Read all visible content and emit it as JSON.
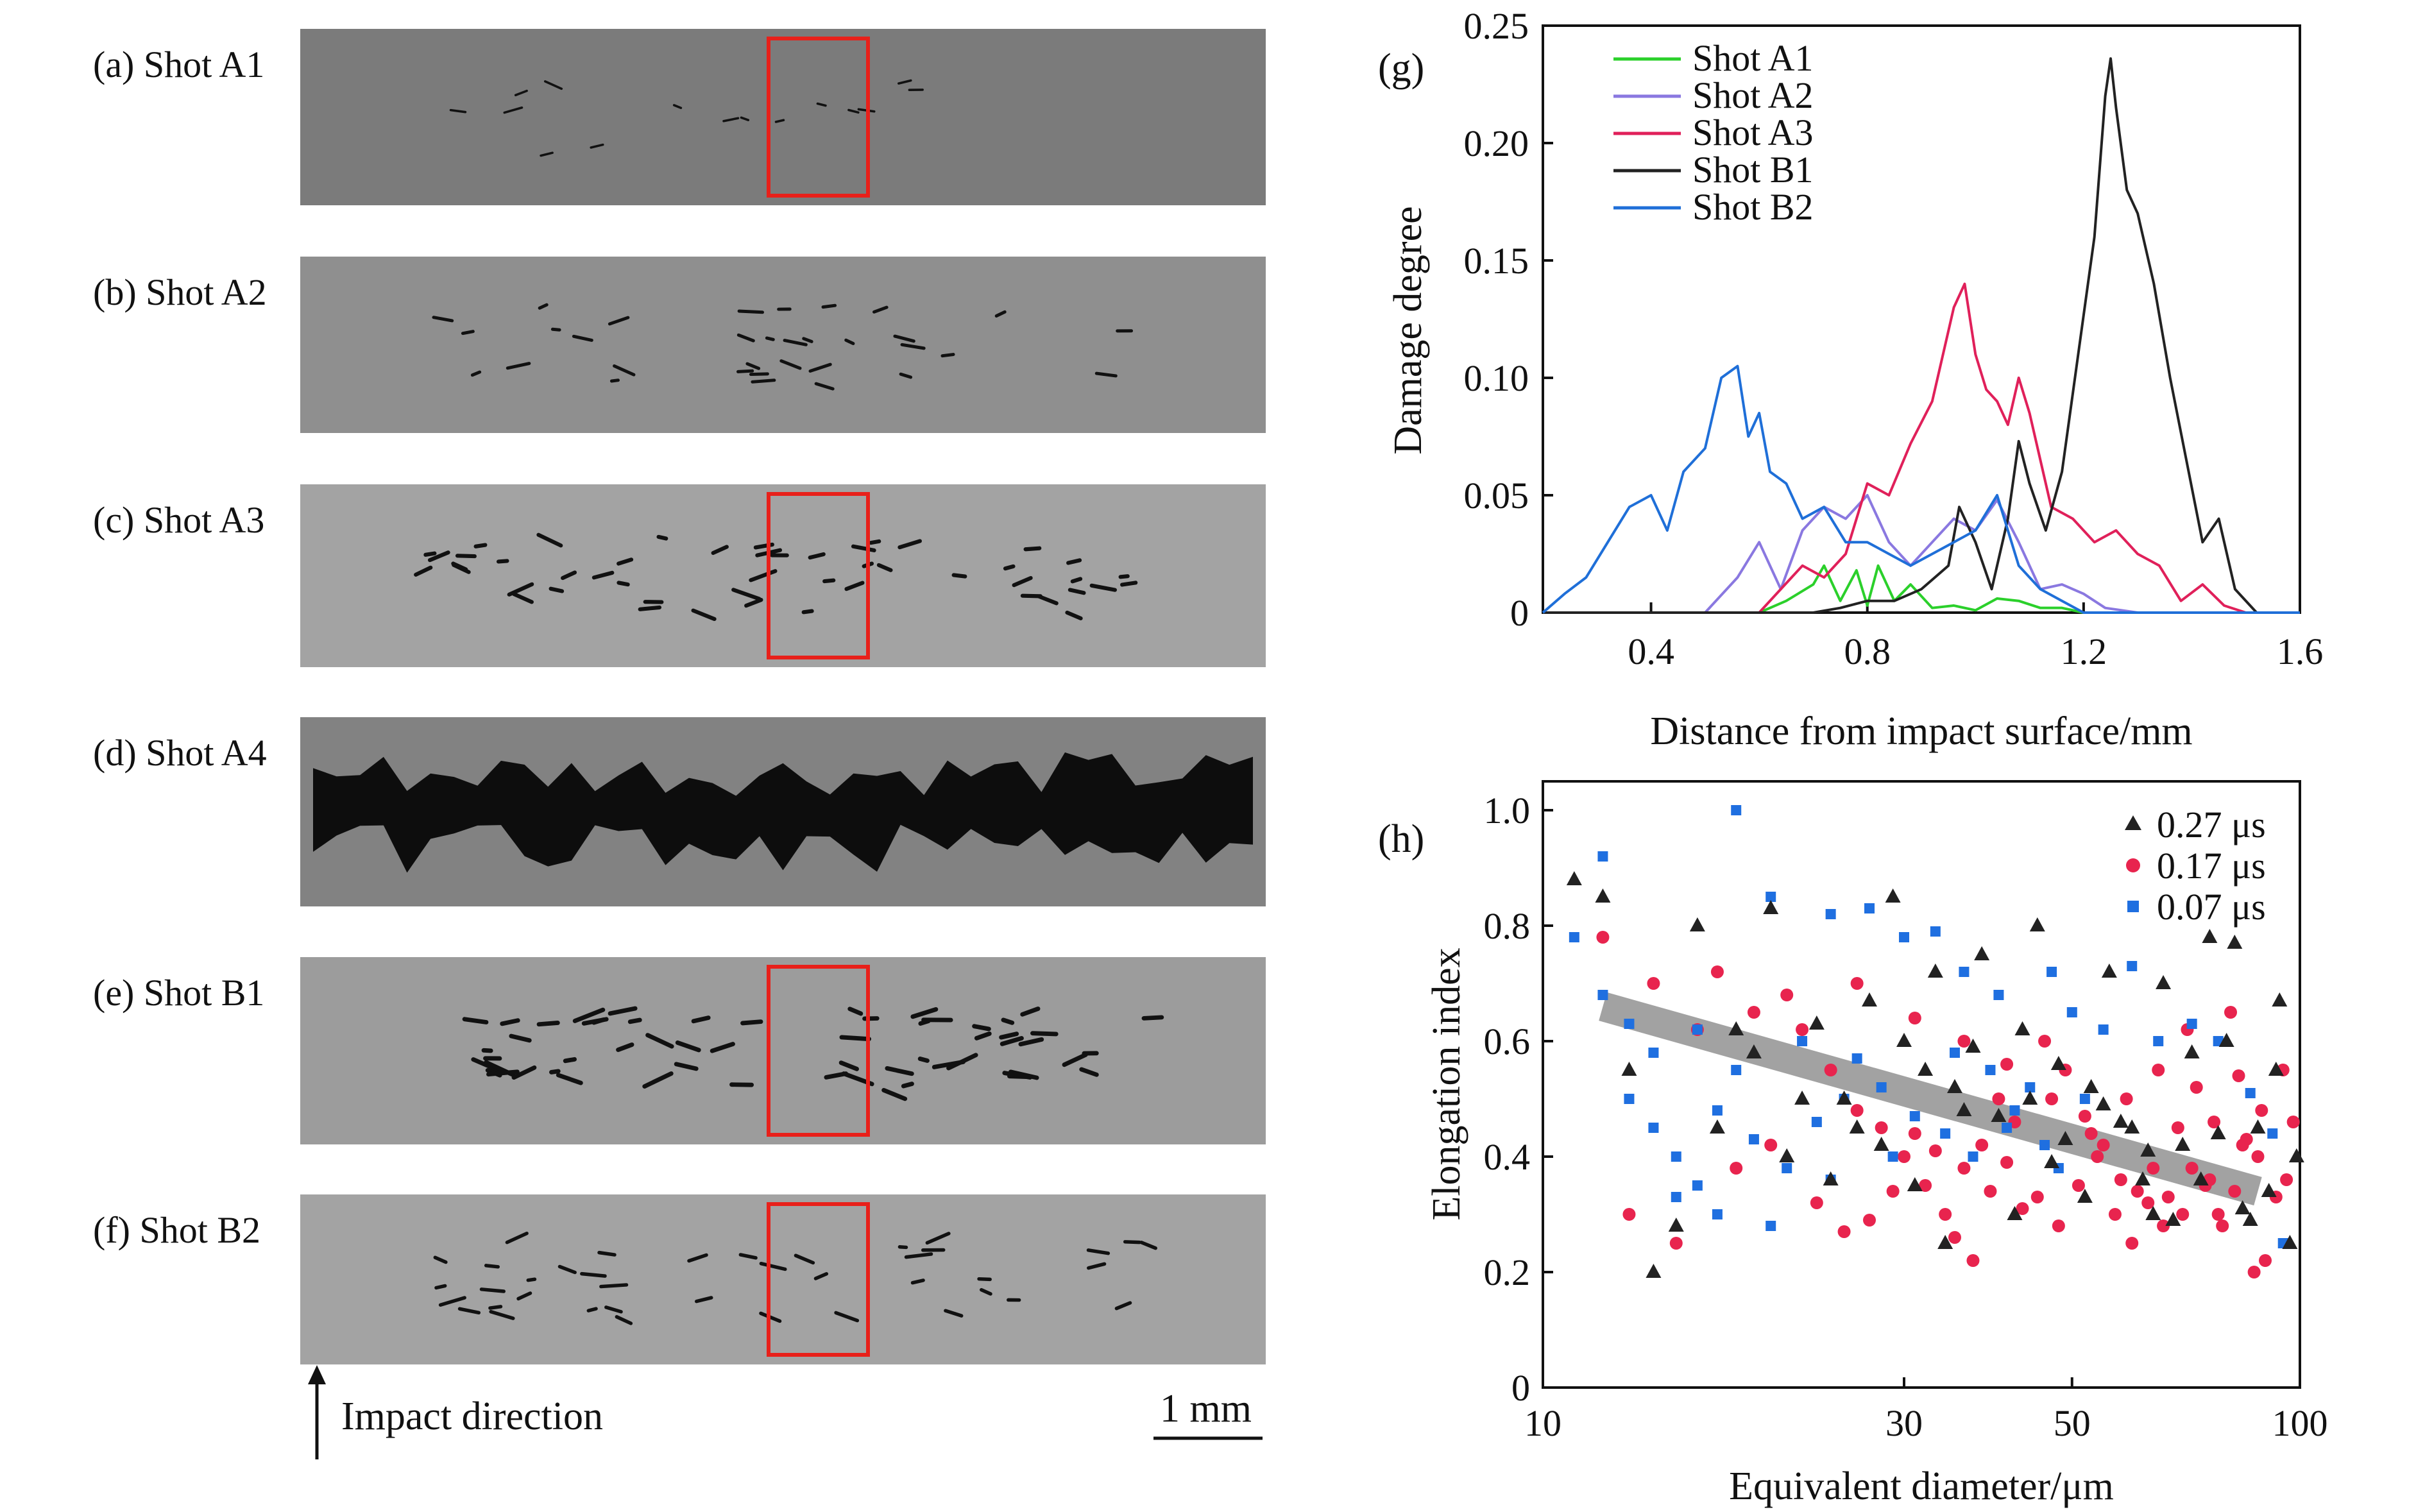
{
  "panels": [
    {
      "label": "(a) Shot A1",
      "crack_level": 0.08,
      "box": true,
      "tone": "#7b7b7b"
    },
    {
      "label": "(b) Shot A2",
      "crack_level": 0.28,
      "box": false,
      "tone": "#8f8f8f"
    },
    {
      "label": "(c) Shot A3",
      "crack_level": 0.45,
      "box": true,
      "tone": "#a3a3a3"
    },
    {
      "label": "(d) Shot A4",
      "crack_level": 1.0,
      "box": false,
      "tone": "#828282"
    },
    {
      "label": "(e) Shot B1",
      "crack_level": 0.55,
      "box": true,
      "tone": "#9c9c9c"
    },
    {
      "label": "(f) Shot B2",
      "crack_level": 0.35,
      "box": true,
      "tone": "#a3a3a3"
    }
  ],
  "impact_label": "Impact direction",
  "scale_label": "1 mm",
  "colors": {
    "A1": "#2bd02b",
    "A2": "#8a78e0",
    "A3": "#e0205a",
    "B1": "#222222",
    "B2": "#1f6fd8",
    "box": "#e8201a",
    "fit_band": "#999999",
    "tri": "#222222",
    "circ": "#e8244e",
    "sq": "#1f6fe0"
  },
  "chart_data": [
    {
      "type": "line",
      "panel_label": "(g)",
      "xlabel": "Distance from impact surface/mm",
      "ylabel": "Damage degree",
      "xlim": [
        0.2,
        1.6
      ],
      "ylim": [
        0,
        0.25
      ],
      "xticks": [
        "0.4",
        "0.8",
        "1.2",
        "1.6"
      ],
      "yticks": [
        "0",
        "0.05",
        "0.10",
        "0.15",
        "0.20",
        "0.25"
      ],
      "legend_position": "top-left",
      "series": [
        {
          "name": "Shot A1",
          "x": [
            0.2,
            0.6,
            0.65,
            0.7,
            0.72,
            0.75,
            0.78,
            0.8,
            0.82,
            0.85,
            0.88,
            0.92,
            0.96,
            1.0,
            1.04,
            1.08,
            1.12,
            1.16,
            1.2,
            1.6
          ],
          "y": [
            0,
            0,
            0.005,
            0.012,
            0.02,
            0.005,
            0.018,
            0.003,
            0.02,
            0.005,
            0.012,
            0.002,
            0.003,
            0.001,
            0.006,
            0.005,
            0.002,
            0.002,
            0,
            0
          ]
        },
        {
          "name": "Shot A2",
          "x": [
            0.2,
            0.5,
            0.56,
            0.6,
            0.64,
            0.68,
            0.72,
            0.76,
            0.8,
            0.84,
            0.88,
            0.92,
            0.96,
            1.0,
            1.04,
            1.08,
            1.12,
            1.16,
            1.2,
            1.24,
            1.3,
            1.6
          ],
          "y": [
            0,
            0,
            0.015,
            0.03,
            0.01,
            0.035,
            0.045,
            0.04,
            0.05,
            0.03,
            0.02,
            0.03,
            0.04,
            0.035,
            0.048,
            0.03,
            0.01,
            0.012,
            0.008,
            0.002,
            0,
            0
          ]
        },
        {
          "name": "Shot A3",
          "x": [
            0.2,
            0.6,
            0.64,
            0.68,
            0.72,
            0.76,
            0.8,
            0.84,
            0.88,
            0.92,
            0.96,
            0.98,
            1.0,
            1.02,
            1.04,
            1.06,
            1.08,
            1.1,
            1.14,
            1.18,
            1.22,
            1.26,
            1.3,
            1.34,
            1.38,
            1.42,
            1.46,
            1.5,
            1.6
          ],
          "y": [
            0,
            0,
            0.01,
            0.02,
            0.015,
            0.025,
            0.055,
            0.05,
            0.072,
            0.09,
            0.13,
            0.14,
            0.11,
            0.095,
            0.09,
            0.08,
            0.1,
            0.085,
            0.045,
            0.04,
            0.03,
            0.035,
            0.025,
            0.02,
            0.005,
            0.012,
            0.003,
            0,
            0
          ]
        },
        {
          "name": "Shot B1",
          "x": [
            0.2,
            0.7,
            0.75,
            0.8,
            0.85,
            0.9,
            0.95,
            0.97,
            1.0,
            1.03,
            1.06,
            1.08,
            1.1,
            1.13,
            1.16,
            1.19,
            1.22,
            1.24,
            1.25,
            1.26,
            1.28,
            1.3,
            1.33,
            1.36,
            1.39,
            1.42,
            1.45,
            1.48,
            1.52,
            1.6
          ],
          "y": [
            0,
            0,
            0.002,
            0.005,
            0.005,
            0.01,
            0.02,
            0.045,
            0.03,
            0.01,
            0.04,
            0.073,
            0.055,
            0.035,
            0.06,
            0.11,
            0.16,
            0.22,
            0.236,
            0.215,
            0.18,
            0.17,
            0.14,
            0.1,
            0.065,
            0.03,
            0.04,
            0.01,
            0,
            0
          ]
        },
        {
          "name": "Shot B2",
          "x": [
            0.2,
            0.24,
            0.28,
            0.32,
            0.36,
            0.4,
            0.43,
            0.46,
            0.5,
            0.53,
            0.56,
            0.58,
            0.6,
            0.62,
            0.65,
            0.68,
            0.72,
            0.76,
            0.8,
            0.84,
            0.88,
            0.92,
            0.96,
            1.0,
            1.04,
            1.08,
            1.12,
            1.16,
            1.2,
            1.6
          ],
          "y": [
            0,
            0.008,
            0.015,
            0.03,
            0.045,
            0.05,
            0.035,
            0.06,
            0.07,
            0.1,
            0.105,
            0.075,
            0.085,
            0.06,
            0.055,
            0.04,
            0.045,
            0.03,
            0.03,
            0.025,
            0.02,
            0.025,
            0.03,
            0.035,
            0.05,
            0.02,
            0.01,
            0.005,
            0,
            0
          ]
        }
      ]
    },
    {
      "type": "scatter",
      "panel_label": "(h)",
      "xlabel": "Equivalent diameter/μm",
      "ylabel": "Elongation index",
      "xlim": [
        10,
        100
      ],
      "ylim": [
        0,
        1.05
      ],
      "xticks": [
        "10",
        "30",
        "50",
        "100"
      ],
      "yticks": [
        "0",
        "0.2",
        "0.4",
        "0.6",
        "0.8",
        "1.0"
      ],
      "legend_position": "top-right",
      "trend": {
        "x": [
          12,
          88
        ],
        "y": [
          0.66,
          0.34
        ]
      },
      "series": [
        {
          "name": "0.27 μs",
          "marker": "triangle"
        },
        {
          "name": "0.17 μs",
          "marker": "circle"
        },
        {
          "name": "0.07 μs",
          "marker": "square"
        }
      ],
      "points": {
        "tri": [
          [
            11,
            0.88
          ],
          [
            12,
            0.85
          ],
          [
            16,
            0.8
          ],
          [
            20,
            0.83
          ],
          [
            29,
            0.85
          ],
          [
            33,
            0.72
          ],
          [
            38,
            0.75
          ],
          [
            45,
            0.8
          ],
          [
            56,
            0.72
          ],
          [
            66,
            0.7
          ],
          [
            76,
            0.78
          ],
          [
            82,
            0.77
          ],
          [
            94,
            0.67
          ],
          [
            99,
            0.4
          ],
          [
            13,
            0.55
          ],
          [
            18,
            0.62
          ],
          [
            22,
            0.5
          ],
          [
            26,
            0.45
          ],
          [
            31,
            0.35
          ],
          [
            35,
            0.52
          ],
          [
            40,
            0.47
          ],
          [
            47,
            0.39
          ],
          [
            52,
            0.33
          ],
          [
            60,
            0.45
          ],
          [
            64,
            0.3
          ],
          [
            70,
            0.42
          ],
          [
            74,
            0.36
          ],
          [
            80,
            0.6
          ],
          [
            86,
            0.29
          ],
          [
            91,
            0.34
          ],
          [
            97,
            0.25
          ],
          [
            15,
            0.28
          ],
          [
            24,
            0.36
          ],
          [
            28,
            0.42
          ],
          [
            34,
            0.25
          ],
          [
            42,
            0.3
          ],
          [
            49,
            0.43
          ],
          [
            55,
            0.49
          ],
          [
            62,
            0.36
          ],
          [
            68,
            0.29
          ],
          [
            78,
            0.44
          ],
          [
            84,
            0.31
          ],
          [
            14,
            0.2
          ],
          [
            19,
            0.58
          ],
          [
            23,
            0.63
          ],
          [
            27,
            0.67
          ],
          [
            32,
            0.55
          ],
          [
            37,
            0.59
          ],
          [
            43,
            0.62
          ],
          [
            48,
            0.56
          ],
          [
            53,
            0.52
          ],
          [
            58,
            0.46
          ],
          [
            63,
            0.41
          ],
          [
            72,
            0.58
          ],
          [
            88,
            0.45
          ],
          [
            93,
            0.55
          ],
          [
            17,
            0.45
          ],
          [
            21,
            0.4
          ],
          [
            25,
            0.5
          ],
          [
            30,
            0.6
          ],
          [
            36,
            0.48
          ],
          [
            44,
            0.5
          ]
        ],
        "circ": [
          [
            12,
            0.78
          ],
          [
            14,
            0.7
          ],
          [
            17,
            0.72
          ],
          [
            19,
            0.65
          ],
          [
            22,
            0.62
          ],
          [
            24,
            0.55
          ],
          [
            26,
            0.48
          ],
          [
            28,
            0.45
          ],
          [
            30,
            0.4
          ],
          [
            32,
            0.35
          ],
          [
            34,
            0.3
          ],
          [
            36,
            0.38
          ],
          [
            38,
            0.42
          ],
          [
            40,
            0.5
          ],
          [
            42,
            0.46
          ],
          [
            45,
            0.33
          ],
          [
            48,
            0.28
          ],
          [
            51,
            0.35
          ],
          [
            54,
            0.4
          ],
          [
            57,
            0.3
          ],
          [
            60,
            0.25
          ],
          [
            63,
            0.32
          ],
          [
            66,
            0.28
          ],
          [
            69,
            0.45
          ],
          [
            72,
            0.38
          ],
          [
            75,
            0.35
          ],
          [
            78,
            0.3
          ],
          [
            81,
            0.65
          ],
          [
            84,
            0.42
          ],
          [
            87,
            0.2
          ],
          [
            90,
            0.22
          ],
          [
            93,
            0.33
          ],
          [
            96,
            0.36
          ],
          [
            98,
            0.46
          ],
          [
            13,
            0.3
          ],
          [
            15,
            0.25
          ],
          [
            18,
            0.38
          ],
          [
            20,
            0.42
          ],
          [
            23,
            0.32
          ],
          [
            25,
            0.27
          ],
          [
            27,
            0.29
          ],
          [
            29,
            0.34
          ],
          [
            31,
            0.44
          ],
          [
            33,
            0.41
          ],
          [
            35,
            0.26
          ],
          [
            37,
            0.22
          ],
          [
            39,
            0.34
          ],
          [
            41,
            0.39
          ],
          [
            43,
            0.31
          ],
          [
            46,
            0.6
          ],
          [
            49,
            0.55
          ],
          [
            52,
            0.47
          ],
          [
            55,
            0.42
          ],
          [
            58,
            0.36
          ],
          [
            61,
            0.34
          ],
          [
            64,
            0.38
          ],
          [
            67,
            0.33
          ],
          [
            70,
            0.3
          ],
          [
            73,
            0.52
          ],
          [
            76,
            0.36
          ],
          [
            79,
            0.28
          ],
          [
            82,
            0.34
          ],
          [
            85,
            0.43
          ],
          [
            88,
            0.4
          ],
          [
            16,
            0.62
          ],
          [
            21,
            0.68
          ],
          [
            26,
            0.7
          ],
          [
            31,
            0.64
          ],
          [
            36,
            0.6
          ],
          [
            41,
            0.56
          ],
          [
            47,
            0.5
          ],
          [
            53,
            0.44
          ],
          [
            59,
            0.5
          ],
          [
            65,
            0.55
          ],
          [
            71,
            0.62
          ],
          [
            77,
            0.46
          ],
          [
            83,
            0.54
          ],
          [
            89,
            0.48
          ],
          [
            95,
            0.55
          ]
        ],
        "sq": [
          [
            11,
            0.78
          ],
          [
            12,
            0.92
          ],
          [
            18,
            1.0
          ],
          [
            20,
            0.85
          ],
          [
            24,
            0.82
          ],
          [
            27,
            0.83
          ],
          [
            30,
            0.78
          ],
          [
            33,
            0.79
          ],
          [
            36,
            0.72
          ],
          [
            40,
            0.68
          ],
          [
            47,
            0.72
          ],
          [
            50,
            0.65
          ],
          [
            55,
            0.62
          ],
          [
            60,
            0.73
          ],
          [
            65,
            0.6
          ],
          [
            72,
            0.63
          ],
          [
            78,
            0.6
          ],
          [
            86,
            0.51
          ],
          [
            92,
            0.44
          ],
          [
            95,
            0.25
          ],
          [
            13,
            0.5
          ],
          [
            14,
            0.45
          ],
          [
            15,
            0.4
          ],
          [
            16,
            0.35
          ],
          [
            17,
            0.48
          ],
          [
            19,
            0.43
          ],
          [
            21,
            0.38
          ],
          [
            23,
            0.46
          ],
          [
            25,
            0.5
          ],
          [
            28,
            0.52
          ],
          [
            31,
            0.47
          ],
          [
            34,
            0.44
          ],
          [
            37,
            0.4
          ],
          [
            39,
            0.55
          ],
          [
            42,
            0.48
          ],
          [
            44,
            0.52
          ],
          [
            46,
            0.42
          ],
          [
            52,
            0.5
          ],
          [
            14,
            0.58
          ],
          [
            16,
            0.62
          ],
          [
            18,
            0.55
          ],
          [
            22,
            0.6
          ],
          [
            26,
            0.57
          ],
          [
            12,
            0.68
          ],
          [
            13,
            0.63
          ],
          [
            15,
            0.33
          ],
          [
            17,
            0.3
          ],
          [
            20,
            0.28
          ],
          [
            24,
            0.36
          ],
          [
            29,
            0.4
          ],
          [
            35,
            0.58
          ],
          [
            41,
            0.45
          ],
          [
            48,
            0.38
          ]
        ]
      }
    }
  ]
}
